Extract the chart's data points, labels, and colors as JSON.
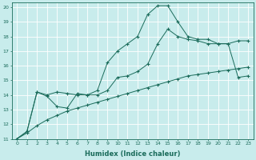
{
  "xlabel": "Humidex (Indice chaleur)",
  "bg_color": "#c8ecec",
  "grid_color": "#ffffff",
  "line_color": "#1a6b5a",
  "xlim": [
    -0.5,
    23.5
  ],
  "ylim": [
    11,
    20.3
  ],
  "xticks": [
    0,
    1,
    2,
    3,
    4,
    5,
    6,
    7,
    8,
    9,
    10,
    11,
    12,
    13,
    14,
    15,
    16,
    17,
    18,
    19,
    20,
    21,
    22,
    23
  ],
  "yticks": [
    11,
    12,
    13,
    14,
    15,
    16,
    17,
    18,
    19,
    20
  ],
  "series1": [
    11,
    11.5,
    14.2,
    14.0,
    14.2,
    14.1,
    14.0,
    14.0,
    14.3,
    16.2,
    17.0,
    17.5,
    18.0,
    19.5,
    20.1,
    20.1,
    19.0,
    18.0,
    17.8,
    17.8,
    17.5,
    17.5,
    17.7,
    17.7
  ],
  "series2": [
    11,
    11.5,
    14.2,
    13.9,
    13.2,
    13.1,
    14.1,
    14.0,
    14.0,
    14.3,
    15.2,
    15.3,
    15.6,
    16.1,
    17.5,
    18.5,
    18.0,
    17.8,
    17.7,
    17.5,
    17.5,
    17.5,
    15.2,
    15.3
  ],
  "series3": [
    11,
    11.4,
    11.9,
    12.3,
    12.6,
    12.9,
    13.1,
    13.3,
    13.5,
    13.7,
    13.9,
    14.1,
    14.3,
    14.5,
    14.7,
    14.9,
    15.1,
    15.3,
    15.4,
    15.5,
    15.6,
    15.7,
    15.8,
    15.9
  ]
}
